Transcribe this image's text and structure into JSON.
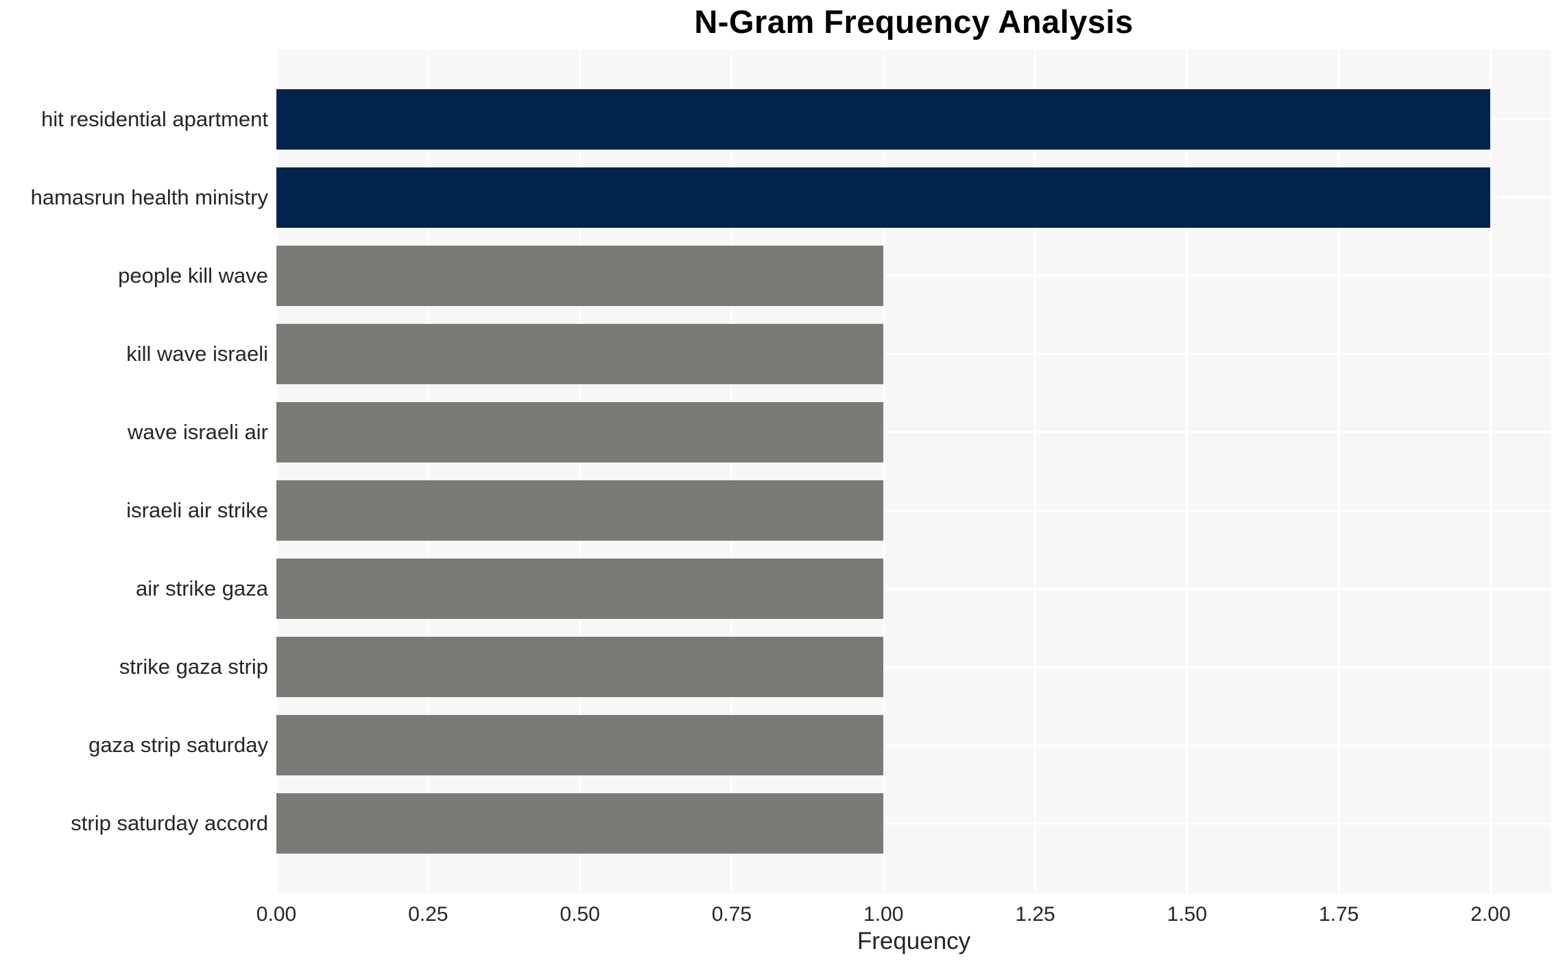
{
  "title": "N-Gram Frequency Analysis",
  "colors": {
    "highlight_bar": "#02254e",
    "default_bar": "#7b7a76",
    "plot_background": "#f7f7f7",
    "gridline": "#ffffff",
    "tick_text": "#262626",
    "title_text": "#000000",
    "figure_background": "#ffffff"
  },
  "chart_data": {
    "type": "bar",
    "orientation": "horizontal",
    "title": "N-Gram Frequency Analysis",
    "xlabel": "Frequency",
    "ylabel": "",
    "categories": [
      "hit residential apartment",
      "hamasrun health ministry",
      "people kill wave",
      "kill wave israeli",
      "wave israeli air",
      "israeli air strike",
      "air strike gaza",
      "strike gaza strip",
      "gaza strip saturday",
      "strip saturday accord"
    ],
    "values": [
      2,
      2,
      1,
      1,
      1,
      1,
      1,
      1,
      1,
      1
    ],
    "bar_colors": [
      "#02254e",
      "#02254e",
      "#7b7a76",
      "#7b7a76",
      "#7b7a76",
      "#7b7a76",
      "#7b7a76",
      "#7b7a76",
      "#7b7a76",
      "#7b7a76"
    ],
    "xtick_labels": [
      "0.00",
      "0.25",
      "0.50",
      "0.75",
      "1.00",
      "1.25",
      "1.50",
      "1.75",
      "2.00"
    ],
    "xtick_values": [
      0,
      0.25,
      0.5,
      0.75,
      1.0,
      1.25,
      1.5,
      1.75,
      2.0
    ],
    "xlim": [
      0,
      2.1
    ],
    "grid": true,
    "legend": false
  }
}
